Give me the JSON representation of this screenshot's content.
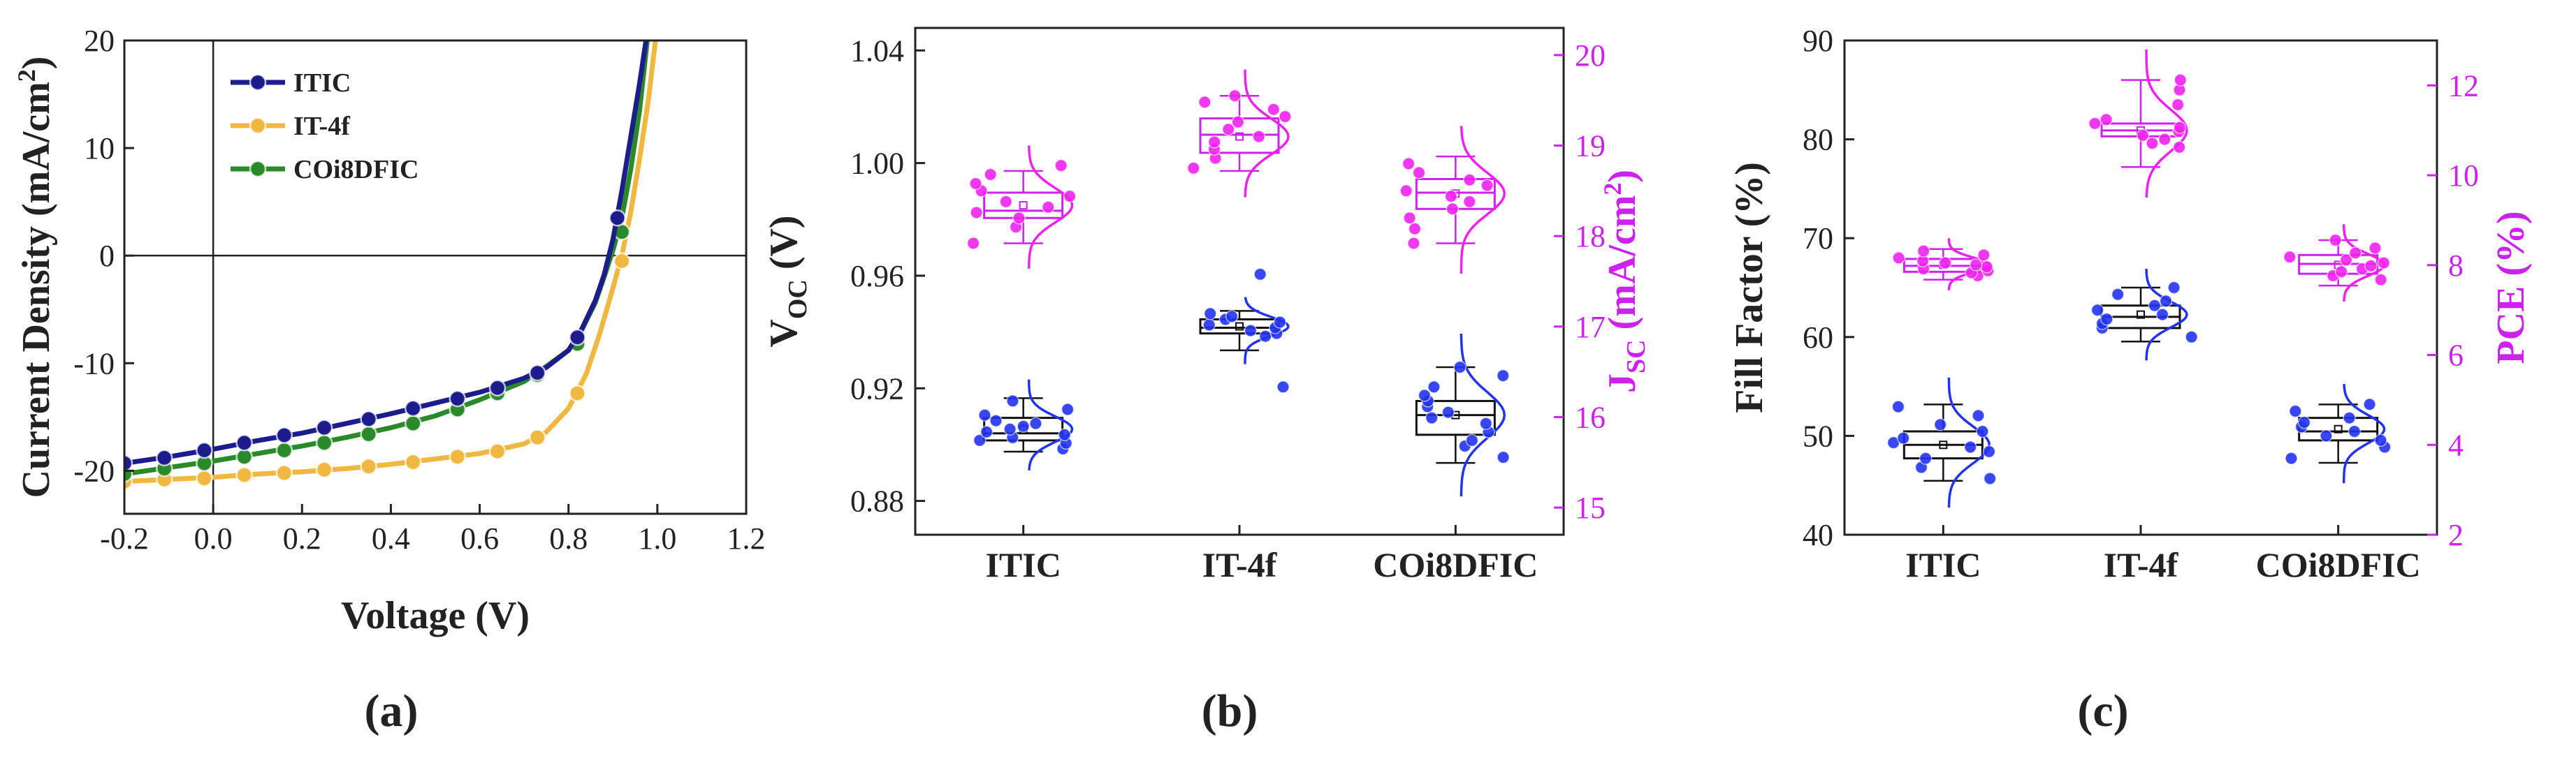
{
  "chart_data": [
    {
      "panel": "(a)",
      "type": "line",
      "title": "",
      "xlabel": "Voltage (V)",
      "ylabel": "Current Density (mA/cm",
      "ylabel_sup": "2",
      "ylabel_close": ")",
      "xlim": [
        -0.2,
        1.2
      ],
      "ylim": [
        -24,
        20
      ],
      "xticks": [
        "-0.2",
        "0.0",
        "0.2",
        "0.4",
        "0.6",
        "0.8",
        "1.0",
        "1.2"
      ],
      "yticks": [
        "20",
        "10",
        "0",
        "-10",
        "-20"
      ],
      "legend_position": "top-left",
      "series": [
        {
          "name": "ITIC",
          "color": "#1c1c8c",
          "x": [
            -0.2,
            -0.11,
            -0.02,
            0.07,
            0.16,
            0.25,
            0.35,
            0.45,
            0.55,
            0.64,
            0.73,
            0.82,
            0.91
          ],
          "y": [
            -19.3,
            -18.8,
            -18.1,
            -17.4,
            -16.7,
            -16.0,
            -15.2,
            -14.2,
            -13.3,
            -12.3,
            -10.9,
            -7.6,
            3.5
          ],
          "curve_x": [
            -0.2,
            -0.1,
            0.0,
            0.1,
            0.2,
            0.3,
            0.4,
            0.5,
            0.6,
            0.7,
            0.75,
            0.8,
            0.83,
            0.86,
            0.88,
            0.9,
            0.92,
            0.94,
            0.96,
            0.98
          ],
          "curve_y": [
            -19.3,
            -18.7,
            -18.0,
            -17.2,
            -16.5,
            -15.6,
            -14.7,
            -13.7,
            -12.7,
            -11.4,
            -10.4,
            -8.8,
            -6.8,
            -4.2,
            -1.8,
            1.5,
            6.0,
            11.0,
            16.0,
            21.5
          ]
        },
        {
          "name": "IT-4f",
          "color": "#f0b840",
          "x": [
            -0.2,
            -0.11,
            -0.02,
            0.07,
            0.16,
            0.25,
            0.35,
            0.45,
            0.55,
            0.64,
            0.73,
            0.82,
            0.92
          ],
          "y": [
            -21.0,
            -20.8,
            -20.7,
            -20.4,
            -20.2,
            -19.9,
            -19.6,
            -19.2,
            -18.7,
            -18.2,
            -16.9,
            -12.8,
            -0.5
          ],
          "curve_x": [
            -0.2,
            -0.1,
            0.0,
            0.1,
            0.2,
            0.3,
            0.4,
            0.5,
            0.6,
            0.7,
            0.75,
            0.8,
            0.84,
            0.87,
            0.9,
            0.92,
            0.94,
            0.96,
            0.98,
            1.0
          ],
          "curve_y": [
            -21.0,
            -20.8,
            -20.6,
            -20.3,
            -20.1,
            -19.8,
            -19.4,
            -18.9,
            -18.4,
            -17.5,
            -16.4,
            -14.2,
            -11.0,
            -7.3,
            -3.0,
            0.0,
            4.0,
            9.0,
            14.5,
            21.5
          ]
        },
        {
          "name": "COi8DFIC",
          "color": "#2a8a2a",
          "x": [
            -0.2,
            -0.11,
            -0.02,
            0.07,
            0.16,
            0.25,
            0.35,
            0.45,
            0.55,
            0.64,
            0.73,
            0.82,
            0.92
          ],
          "y": [
            -20.3,
            -19.8,
            -19.3,
            -18.7,
            -18.1,
            -17.4,
            -16.6,
            -15.6,
            -14.3,
            -12.8,
            -11.1,
            -8.2,
            2.2
          ],
          "curve_x": [
            -0.2,
            -0.1,
            0.0,
            0.1,
            0.2,
            0.3,
            0.4,
            0.5,
            0.6,
            0.7,
            0.75,
            0.8,
            0.83,
            0.86,
            0.88,
            0.9,
            0.92,
            0.94,
            0.96,
            0.98
          ],
          "curve_y": [
            -20.3,
            -19.7,
            -19.1,
            -18.4,
            -17.7,
            -16.9,
            -16.0,
            -14.9,
            -13.4,
            -11.7,
            -10.3,
            -8.8,
            -6.9,
            -4.4,
            -2.0,
            0.5,
            3.5,
            8.0,
            13.5,
            21.0
          ]
        }
      ]
    },
    {
      "panel": "(b)",
      "type": "box",
      "categories": [
        "ITIC",
        "IT-4f",
        "COi8DFIC"
      ],
      "left_axis": {
        "label_main": "V",
        "label_sub": "OC",
        "label_unit": " (V)",
        "color": "#222222",
        "ylim": [
          0.868,
          1.048
        ],
        "ticks": [
          "0.88",
          "0.92",
          "0.96",
          "1.00",
          "1.04"
        ]
      },
      "right_axis": {
        "label_main": "J",
        "label_sub": "SC",
        "label_unit": " (mA/cm",
        "label_sup": "2",
        "label_close": ")",
        "color": "#cc22ee",
        "ylim": [
          14.7,
          20.3
        ],
        "ticks": [
          "15",
          "16",
          "17",
          "18",
          "19",
          "20"
        ]
      },
      "series": [
        {
          "name": "VOC",
          "axis": "left",
          "box_color": "#111111",
          "point_color": "#2233ee",
          "boxes": [
            {
              "category": "ITIC",
              "q1": 0.9015,
              "median": 0.904,
              "q3": 0.9095,
              "mean": 0.9055,
              "whisker_low": 0.8975,
              "whisker_high": 0.9165,
              "points": [
                0.8985,
                0.9005,
                0.9015,
                0.9025,
                0.9035,
                0.9045,
                0.9055,
                0.9065,
                0.9075,
                0.9085,
                0.9105,
                0.9125,
                0.9155
              ]
            },
            {
              "category": "IT-4f",
              "q1": 0.9395,
              "median": 0.9415,
              "q3": 0.9445,
              "mean": 0.942,
              "whisker_low": 0.9335,
              "whisker_high": 0.9475,
              "points": [
                0.9205,
                0.9385,
                0.9395,
                0.9405,
                0.9415,
                0.9425,
                0.9435,
                0.9445,
                0.9455,
                0.9465,
                0.9605
              ]
            },
            {
              "category": "COi8DFIC",
              "q1": 0.9035,
              "median": 0.9105,
              "q3": 0.9155,
              "mean": 0.9105,
              "whisker_low": 0.8935,
              "whisker_high": 0.9275,
              "points": [
                0.8955,
                0.8995,
                0.9015,
                0.9045,
                0.9075,
                0.9095,
                0.9115,
                0.9135,
                0.9155,
                0.9175,
                0.9205,
                0.9245,
                0.9275
              ]
            }
          ]
        },
        {
          "name": "JSC",
          "axis": "right",
          "box_color": "#cc22ee",
          "point_color": "#ee22ee",
          "boxes": [
            {
              "category": "ITIC",
              "q1": 18.2,
              "median": 18.28,
              "q3": 18.48,
              "mean": 18.34,
              "whisker_low": 17.92,
              "whisker_high": 18.72,
              "points": [
                17.92,
                18.1,
                18.2,
                18.26,
                18.32,
                18.38,
                18.44,
                18.5,
                18.58,
                18.68,
                18.78
              ]
            },
            {
              "category": "IT-4f",
              "q1": 18.92,
              "median": 19.12,
              "q3": 19.3,
              "mean": 19.1,
              "whisker_low": 18.72,
              "whisker_high": 19.55,
              "points": [
                18.75,
                18.86,
                18.96,
                19.04,
                19.1,
                19.18,
                19.26,
                19.32,
                19.4,
                19.48,
                19.55
              ]
            },
            {
              "category": "COi8DFIC",
              "q1": 18.3,
              "median": 18.48,
              "q3": 18.63,
              "mean": 18.47,
              "whisker_low": 17.92,
              "whisker_high": 18.88,
              "points": [
                17.92,
                18.08,
                18.2,
                18.3,
                18.38,
                18.44,
                18.5,
                18.56,
                18.62,
                18.7,
                18.8
              ]
            }
          ]
        }
      ]
    },
    {
      "panel": "(c)",
      "type": "box",
      "categories": [
        "ITIC",
        "IT-4f",
        "COi8DFIC"
      ],
      "left_axis": {
        "label_main": "Fill Factor (%)",
        "color": "#222222",
        "ylim": [
          40,
          90
        ],
        "ticks": [
          "40",
          "50",
          "60",
          "70",
          "80",
          "90"
        ]
      },
      "right_axis": {
        "label_main": "PCE (%)",
        "color": "#cc22ee",
        "ylim": [
          2,
          13
        ],
        "ticks": [
          "2",
          "4",
          "6",
          "8",
          "10",
          "12"
        ]
      },
      "series": [
        {
          "name": "FF",
          "axis": "left",
          "box_color": "#cc22ee",
          "point_color": "#ee22ee",
          "boxes": [
            {
              "category": "ITIC",
              "q1": 66.6,
              "median": 67.2,
              "q3": 67.9,
              "mean": 67.3,
              "whisker_low": 65.8,
              "whisker_high": 68.9,
              "points": [
                66.2,
                66.5,
                66.7,
                66.9,
                67.1,
                67.3,
                67.5,
                67.7,
                68.0,
                68.3,
                68.7
              ]
            },
            {
              "category": "IT-4f",
              "q1": 80.3,
              "median": 80.9,
              "q3": 81.6,
              "mean": 80.9,
              "whisker_low": 77.2,
              "whisker_high": 86.0,
              "points": [
                79.2,
                79.6,
                80.0,
                80.4,
                80.8,
                81.2,
                81.6,
                82.0,
                83.5,
                85.0,
                86.0
              ]
            },
            {
              "category": "COi8DFIC",
              "q1": 66.4,
              "median": 67.4,
              "q3": 68.3,
              "mean": 67.3,
              "whisker_low": 65.2,
              "whisker_high": 69.8,
              "points": [
                65.8,
                66.2,
                66.6,
                66.9,
                67.2,
                67.5,
                67.8,
                68.1,
                68.5,
                69.0,
                69.8
              ]
            }
          ]
        },
        {
          "name": "PCE",
          "axis": "right",
          "box_color": "#111111",
          "point_color": "#2233ee",
          "boxes": [
            {
              "category": "ITIC",
              "q1": 3.7,
              "median": 4.0,
              "q3": 4.3,
              "mean": 4.0,
              "whisker_low": 3.2,
              "whisker_high": 4.9,
              "points": [
                3.25,
                3.5,
                3.7,
                3.85,
                3.95,
                4.05,
                4.15,
                4.3,
                4.45,
                4.65,
                4.85
              ]
            },
            {
              "category": "IT-4f",
              "q1": 6.6,
              "median": 6.85,
              "q3": 7.1,
              "mean": 6.9,
              "whisker_low": 6.3,
              "whisker_high": 7.5,
              "points": [
                6.4,
                6.6,
                6.7,
                6.8,
                6.9,
                7.0,
                7.1,
                7.2,
                7.35,
                7.5
              ]
            },
            {
              "category": "COi8DFIC",
              "q1": 4.1,
              "median": 4.3,
              "q3": 4.6,
              "mean": 4.35,
              "whisker_low": 3.6,
              "whisker_high": 4.9,
              "points": [
                3.7,
                3.95,
                4.1,
                4.2,
                4.3,
                4.4,
                4.5,
                4.6,
                4.75,
                4.9
              ]
            }
          ]
        }
      ]
    }
  ]
}
